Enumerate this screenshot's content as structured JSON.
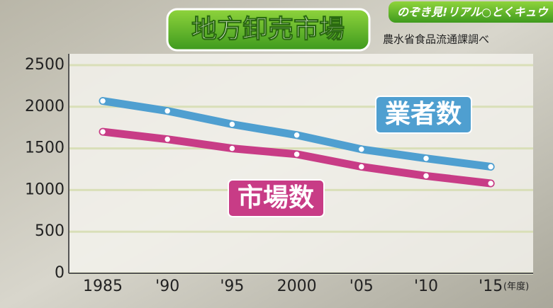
{
  "chart_data": {
    "type": "line",
    "title": "地方卸売市場",
    "source": "農水省食品流通課調べ",
    "logo": "のぞき見!リアル○とくキュウ",
    "x_unit": "(年度)",
    "categories": [
      "1985",
      "'90",
      "'95",
      "2000",
      "'05",
      "'10",
      "'15"
    ],
    "series": [
      {
        "name": "業者数",
        "color": "#4f9fd0",
        "values": [
          2070,
          1950,
          1790,
          1660,
          1490,
          1380,
          1280
        ]
      },
      {
        "name": "市場数",
        "color": "#c83c86",
        "values": [
          1700,
          1610,
          1500,
          1430,
          1280,
          1170,
          1080
        ]
      }
    ],
    "ylim": [
      0,
      2500
    ],
    "yticks": [
      0,
      500,
      1000,
      1500,
      2000,
      2500
    ],
    "grid": true
  }
}
